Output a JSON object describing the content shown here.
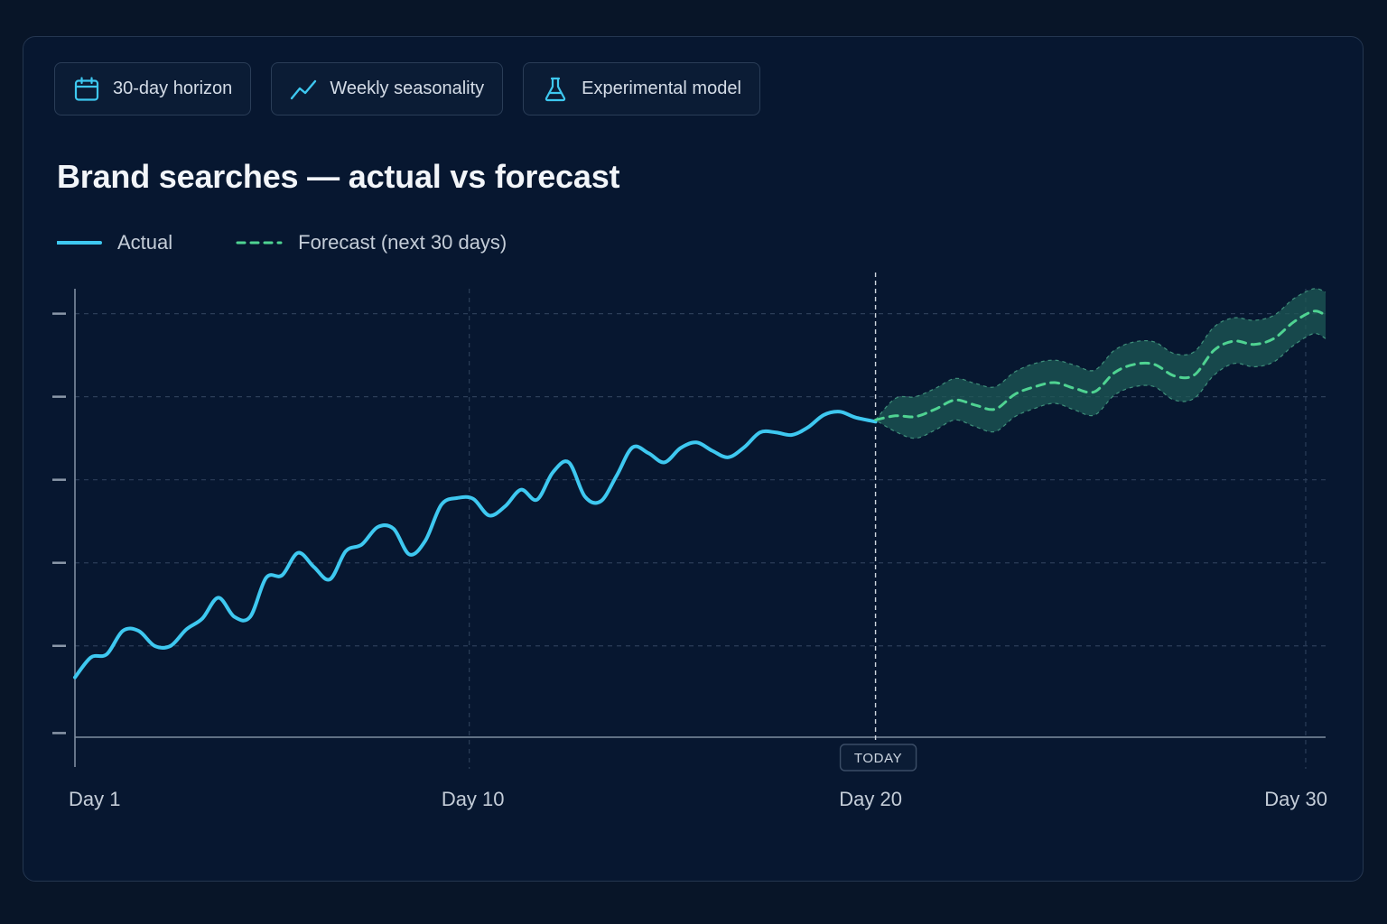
{
  "chips": [
    {
      "icon": "calendar-icon",
      "label": "30-day horizon"
    },
    {
      "icon": "trend-line-icon",
      "label": "Weekly seasonality"
    },
    {
      "icon": "flask-icon",
      "label": "Experimental model"
    }
  ],
  "colors": {
    "actual": "#3ec8f0",
    "forecast": "#4fd392",
    "band": "#1e5a55",
    "grid": "#2c3e58",
    "axis": "#7f8da0"
  },
  "chart_data": {
    "type": "line",
    "title": "Brand searches — actual vs forecast",
    "xlabel": "",
    "ylabel": "",
    "x_ticks": [
      {
        "x": 1,
        "label": "Day 1"
      },
      {
        "x": 10.9,
        "label": "Day 10"
      },
      {
        "x": 21,
        "label": "Day 20"
      },
      {
        "x": 31.9,
        "label": "Day 30"
      }
    ],
    "xlim": [
      1,
      32.4
    ],
    "ylim": [
      0,
      5.4
    ],
    "y_ticks": [
      0.05,
      1.1,
      2.1,
      3.1,
      4.1,
      5.1
    ],
    "y_tick_labels_visible": false,
    "today_x": 21.1,
    "today_label": "TODAY",
    "grid": true,
    "legend_position": "top-left",
    "series": [
      {
        "name": "Actual",
        "style": "solid",
        "x": [
          1,
          1.4,
          1.8,
          2.2,
          2.6,
          3.0,
          3.4,
          3.8,
          4.2,
          4.6,
          5.0,
          5.4,
          5.8,
          6.2,
          6.6,
          7.0,
          7.4,
          7.8,
          8.2,
          8.6,
          9.0,
          9.4,
          9.8,
          10.2,
          10.6,
          11.0,
          11.4,
          11.8,
          12.2,
          12.6,
          13.0,
          13.4,
          13.8,
          14.2,
          14.6,
          15.0,
          15.4,
          15.8,
          16.2,
          16.6,
          17.0,
          17.4,
          17.8,
          18.2,
          18.6,
          19.0,
          19.4,
          19.8,
          20.2,
          20.6,
          21.1
        ],
        "y": [
          0.72,
          0.96,
          1.0,
          1.28,
          1.28,
          1.1,
          1.1,
          1.3,
          1.43,
          1.68,
          1.45,
          1.45,
          1.92,
          1.95,
          2.22,
          2.05,
          1.9,
          2.24,
          2.32,
          2.53,
          2.51,
          2.2,
          2.37,
          2.8,
          2.88,
          2.87,
          2.67,
          2.78,
          2.98,
          2.86,
          3.19,
          3.31,
          2.9,
          2.84,
          3.15,
          3.49,
          3.42,
          3.31,
          3.48,
          3.55,
          3.45,
          3.37,
          3.49,
          3.67,
          3.67,
          3.64,
          3.73,
          3.88,
          3.92,
          3.85,
          3.8
        ]
      },
      {
        "name": "Forecast (next 30 days)",
        "style": "dashed",
        "x": [
          21.1,
          21.6,
          22.1,
          22.6,
          23.1,
          23.6,
          24.1,
          24.6,
          25.1,
          25.6,
          26.1,
          26.6,
          27.1,
          27.6,
          28.1,
          28.6,
          29.1,
          29.6,
          30.1,
          30.6,
          31.1,
          31.6,
          32.1,
          32.4
        ],
        "y": [
          3.82,
          3.87,
          3.86,
          3.95,
          4.06,
          4.0,
          3.95,
          4.13,
          4.22,
          4.27,
          4.2,
          4.16,
          4.39,
          4.49,
          4.49,
          4.35,
          4.36,
          4.66,
          4.77,
          4.73,
          4.8,
          5.0,
          5.13,
          5.08
        ],
        "band_lower": [
          3.82,
          3.68,
          3.6,
          3.7,
          3.82,
          3.74,
          3.68,
          3.86,
          3.96,
          4.02,
          3.94,
          3.88,
          4.12,
          4.22,
          4.22,
          4.06,
          4.08,
          4.36,
          4.5,
          4.46,
          4.52,
          4.72,
          4.86,
          4.8
        ],
        "band_upper": [
          3.82,
          4.08,
          4.1,
          4.2,
          4.32,
          4.26,
          4.22,
          4.4,
          4.5,
          4.54,
          4.48,
          4.42,
          4.66,
          4.76,
          4.76,
          4.62,
          4.64,
          4.94,
          5.05,
          5.02,
          5.08,
          5.28,
          5.4,
          5.36
        ]
      }
    ]
  }
}
